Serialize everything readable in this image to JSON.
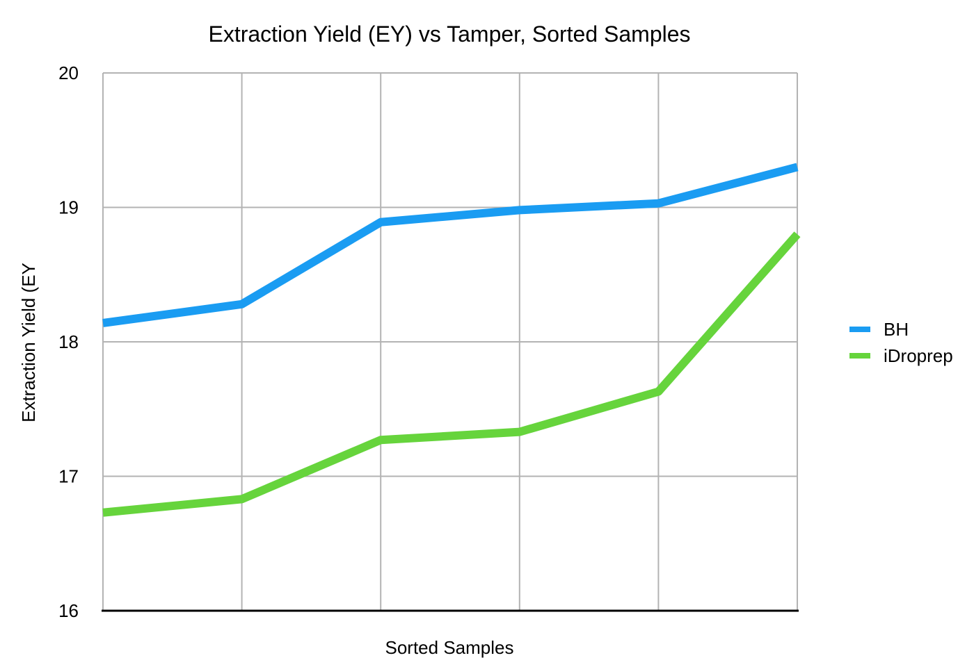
{
  "chart_data": {
    "type": "line",
    "title": "Extraction Yield (EY) vs Tamper, Sorted Samples",
    "xlabel": "Sorted Samples",
    "ylabel": "Extraction Yield (EY",
    "ylim": [
      16,
      20
    ],
    "yticks": [
      "16",
      "17",
      "18",
      "19",
      "20"
    ],
    "x": [
      1,
      2,
      3,
      4,
      5,
      6
    ],
    "grid": true,
    "legend_position": "right",
    "series": [
      {
        "name": "BH",
        "color": "#1a9cf2",
        "values": [
          18.14,
          18.28,
          18.89,
          18.98,
          19.03,
          19.3
        ]
      },
      {
        "name": "iDroprep",
        "color": "#66d43c",
        "values": [
          16.73,
          16.83,
          17.27,
          17.33,
          17.63,
          18.8
        ]
      }
    ]
  }
}
